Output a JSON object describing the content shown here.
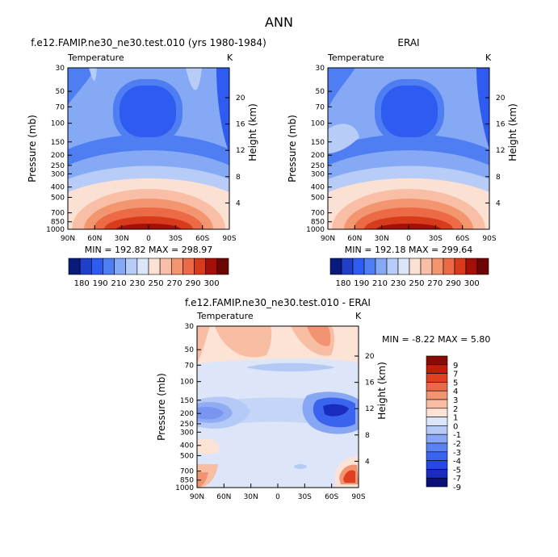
{
  "figure": {
    "title": "ANN",
    "variable_label": "Temperature",
    "unit_label": "K",
    "y_left_label": "Pressure  (mb)",
    "y_right_label": "Height  (km)"
  },
  "chart_data": [
    {
      "type": "heatmap",
      "title": "f.e12.FAMIP.ne30_ne30.test.010 (yrs 1980-1984)",
      "subtitle": "Temperature",
      "unit": "K",
      "xlabel": "",
      "ylabel": "Pressure  (mb)",
      "ylabel_right": "Height  (km)",
      "x_ticks": [
        "90N",
        "60N",
        "30N",
        "0",
        "30S",
        "60S",
        "90S"
      ],
      "y_ticks": [
        30,
        50,
        70,
        100,
        150,
        200,
        250,
        300,
        400,
        500,
        700,
        850,
        1000
      ],
      "y_right_ticks": [
        4,
        8,
        12,
        16,
        20
      ],
      "ylim": [
        30,
        1000
      ],
      "y_scale": "log",
      "stats": "MIN = 192.82   MAX = 298.97",
      "levels": [
        180,
        190,
        200,
        210,
        220,
        230,
        240,
        250,
        260,
        270,
        280,
        290,
        300
      ],
      "colorbar_labels": [
        "180",
        "190",
        "210",
        "230",
        "250",
        "270",
        "290",
        "300"
      ]
    },
    {
      "type": "heatmap",
      "title": "ERAI",
      "subtitle": "Temperature",
      "unit": "K",
      "xlabel": "",
      "ylabel": "Pressure  (mb)",
      "ylabel_right": "Height  (km)",
      "x_ticks": [
        "90N",
        "60N",
        "30N",
        "0",
        "30S",
        "60S",
        "90S"
      ],
      "y_ticks": [
        30,
        50,
        70,
        100,
        150,
        200,
        250,
        300,
        400,
        500,
        700,
        850,
        1000
      ],
      "y_right_ticks": [
        4,
        8,
        12,
        16,
        20
      ],
      "ylim": [
        30,
        1000
      ],
      "y_scale": "log",
      "stats": "MIN = 192.18   MAX = 299.64",
      "levels": [
        180,
        190,
        200,
        210,
        220,
        230,
        240,
        250,
        260,
        270,
        280,
        290,
        300
      ],
      "colorbar_labels": [
        "180",
        "190",
        "210",
        "230",
        "250",
        "270",
        "290",
        "300"
      ]
    },
    {
      "type": "heatmap",
      "title": "f.e12.FAMIP.ne30_ne30.test.010 - ERAI",
      "subtitle": "Temperature",
      "unit": "K",
      "xlabel": "",
      "ylabel": "Pressure  (mb)",
      "ylabel_right": "Height  (km)",
      "x_ticks": [
        "90N",
        "60N",
        "30N",
        "0",
        "30S",
        "60S",
        "90S"
      ],
      "y_ticks": [
        30,
        50,
        70,
        100,
        150,
        200,
        250,
        300,
        400,
        500,
        700,
        850,
        1000
      ],
      "y_right_ticks": [
        4,
        8,
        12,
        16,
        20
      ],
      "ylim": [
        30,
        1000
      ],
      "y_scale": "log",
      "stats": "MIN =   -8.22   MAX =    5.80",
      "levels": [
        -9,
        -7,
        -5,
        -4,
        -3,
        -2,
        -1,
        0,
        1,
        2,
        3,
        4,
        5,
        7,
        9
      ],
      "colorbar_labels": [
        "9",
        "7",
        "5",
        "4",
        "3",
        "2",
        "1",
        "0",
        "-1",
        "-2",
        "-3",
        "-4",
        "-5",
        "-7",
        "-9"
      ]
    }
  ],
  "colors": {
    "abs_scale": [
      "#0a1a7a",
      "#1f3fc8",
      "#2f5cf0",
      "#4f7ef2",
      "#86a9f5",
      "#b7cdf7",
      "#dbe6f9",
      "#fbe0d4",
      "#f8bfa6",
      "#f3956f",
      "#ec6a45",
      "#d83a1c",
      "#a50f0a",
      "#6e0505"
    ],
    "diff_scale": [
      "#0a0f7a",
      "#1a2cc0",
      "#2447e6",
      "#3a63ee",
      "#5b82f0",
      "#87a6f3",
      "#b4c9f6",
      "#dce6f8",
      "#fde2d6",
      "#f8bea4",
      "#f29472",
      "#eb6a45",
      "#e0401f",
      "#bf1e0c",
      "#8a0a05"
    ]
  }
}
